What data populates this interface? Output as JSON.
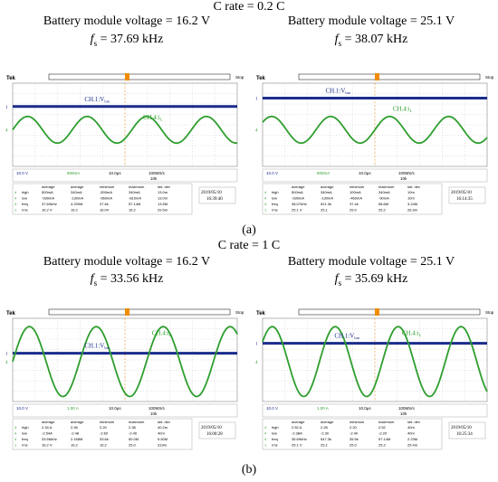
{
  "section_a": {
    "title": "C rate = 0.2 C",
    "left": {
      "voltage_label": "Battery module voltage = 16.2 V",
      "fs_symbol": "f",
      "fs_sub": "s",
      "fs_value": " = 37.69 kHz"
    },
    "right": {
      "voltage_label": "Battery module voltage = 25.1 V",
      "fs_symbol": "f",
      "fs_sub": "s",
      "fs_value": " = 38.07 kHz"
    },
    "caption": "(a)"
  },
  "section_b": {
    "title": "C rate = 1 C",
    "left": {
      "voltage_label": "Battery module voltage = 16.2 V",
      "fs_symbol": "f",
      "fs_sub": "s",
      "fs_value": " = 33.56 kHz"
    },
    "right": {
      "voltage_label": "Battery module voltage = 25.1 V",
      "fs_symbol": "f",
      "fs_sub": "s",
      "fs_value": " = 35.69 kHz"
    },
    "caption": "(b)"
  },
  "scope": {
    "brand": "Tek",
    "stop_label": "Stop",
    "meas_headers": [
      "average",
      "average",
      "minimum",
      "maximum",
      "std. dev"
    ],
    "row_labels": [
      "high",
      "low",
      "freq",
      "rms"
    ]
  },
  "chart_data": [
    {
      "type": "line",
      "panel": "a-left",
      "series": [
        {
          "name": "CH.1: V_bm",
          "level": 16.2,
          "color": "#1a2c8c"
        },
        {
          "name": "CH.4: i_L",
          "frequency_khz": 37.69,
          "color": "#2e9e2e"
        }
      ],
      "ch1_label": "CH.1:V",
      "ch1_sub": "bm",
      "ch4_label": "CH.4:i",
      "ch4_sub": "L",
      "ch1_scale": "10.0 V",
      "ch4_scale": "500mA",
      "timebase": "10.0μs",
      "sample": "100MS/s",
      "record": "10k",
      "date": "2019/05/10",
      "time": "16:39:40",
      "stats": [
        [
          "500mA",
          "340mA",
          "-500mA",
          "340mA",
          "13.0m"
        ],
        [
          "-930mA",
          "-130mA",
          "-960mA",
          "-810mA",
          "13.0m"
        ],
        [
          "37.69kHz",
          "4.290M",
          "37.6k",
          "57.14M",
          "13.5M"
        ],
        [
          "16.2 V",
          "16.2",
          "16.0V",
          "16.2",
          "29.5m"
        ]
      ]
    },
    {
      "type": "line",
      "panel": "a-right",
      "series": [
        {
          "name": "CH.1: V_bm",
          "level": 25.1,
          "color": "#1a2c8c"
        },
        {
          "name": "CH.4: i_L",
          "frequency_khz": 38.07,
          "color": "#2e9e2e"
        }
      ],
      "ch1_label": "CH.1:V",
      "ch1_sub": "bm",
      "ch4_label": "CH.4:i",
      "ch4_sub": "L",
      "ch1_scale": "10.0 V",
      "ch4_scale": "500mA",
      "timebase": "10.0μs",
      "sample": "100MS/s",
      "record": "10k",
      "date": "2019/05/10",
      "time": "16:14:35",
      "stats": [
        [
          "500mA",
          "340mA",
          "100mA",
          "340mA",
          "10m"
        ],
        [
          "-930mA",
          "-130mA",
          "-460mA",
          "-90mA",
          "10m"
        ],
        [
          "38.07kHz",
          "521.3k",
          "37.4k",
          "58.6M",
          "3.24M"
        ],
        [
          "25.1 V",
          "25.1",
          "25.0",
          "25.2",
          "26.9m"
        ]
      ]
    },
    {
      "type": "line",
      "panel": "b-left",
      "series": [
        {
          "name": "CH.1: V_bm",
          "level": 16.2,
          "color": "#1a2c8c"
        },
        {
          "name": "CH.4: i_L",
          "frequency_khz": 33.56,
          "color": "#2e9e2e"
        }
      ],
      "ch1_label": "CH.1:V",
      "ch1_sub": "bm",
      "ch4_label": "CH.4:i",
      "ch4_sub": "L",
      "ch1_scale": "10.0 V",
      "ch4_scale": "1.00 A",
      "timebase": "10.0μs",
      "sample": "100MS/s",
      "record": "10k",
      "date": "2019/05/10",
      "time": "16:00:28",
      "stats": [
        [
          "2.34 A",
          "2.36",
          "2.20",
          "2.38",
          "40.2m"
        ],
        [
          "-2.54A",
          "-2.48",
          "-2.60",
          "-2.40",
          "40m"
        ],
        [
          "33.56kHz",
          "2.168M",
          "33.6k",
          "50.0M",
          "9.50M"
        ],
        [
          "16.2 V",
          "16.2",
          "16.2",
          "25.0",
          "319m"
        ]
      ]
    },
    {
      "type": "line",
      "panel": "b-right",
      "series": [
        {
          "name": "CH.1: V_bm",
          "level": 25.1,
          "color": "#1a2c8c"
        },
        {
          "name": "CH.4: i_L",
          "frequency_khz": 35.69,
          "color": "#2e9e2e"
        }
      ],
      "ch1_label": "CH.1:V",
      "ch1_sub": "bm",
      "ch4_label": "CH.4:i",
      "ch4_sub": "L",
      "ch1_scale": "10.0 V",
      "ch4_scale": "1.00 A",
      "timebase": "10.0μs",
      "sample": "100MS/s",
      "record": "10k",
      "date": "2019/05/10",
      "time": "16:25:34",
      "stats": [
        [
          "2.52 A",
          "2.28",
          "2.20",
          "2.52",
          "40m"
        ],
        [
          "-2.38A",
          "-2.30",
          "-2.40",
          "-2.20",
          "40m"
        ],
        [
          "35.69kHz",
          "547.3k",
          "35.5k",
          "57.14M",
          "2.23M"
        ],
        [
          "25.1 V",
          "25.1",
          "25.0",
          "25.2",
          "25.4m"
        ]
      ]
    }
  ]
}
